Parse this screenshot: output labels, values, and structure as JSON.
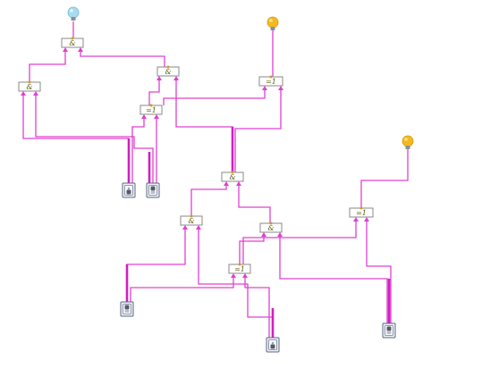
{
  "colors": {
    "wire": "#e040d0",
    "bulb_on": "#f5b820",
    "bulb_off": "#a8dcef",
    "gate_border": "#888888"
  },
  "gates": [
    {
      "id": "and1",
      "label": "&"
    },
    {
      "id": "and2",
      "label": "&"
    },
    {
      "id": "and3",
      "label": "&"
    },
    {
      "id": "xor1",
      "label": "=1"
    },
    {
      "id": "xor2",
      "label": "=1"
    },
    {
      "id": "and4",
      "label": "&"
    },
    {
      "id": "and5",
      "label": "&"
    },
    {
      "id": "and6",
      "label": "&"
    },
    {
      "id": "xor3",
      "label": "=1"
    },
    {
      "id": "xor4",
      "label": "=1"
    }
  ],
  "switches": [
    {
      "id": "s1",
      "state": "off"
    },
    {
      "id": "s2",
      "state": "on"
    },
    {
      "id": "s3",
      "state": "on"
    },
    {
      "id": "s4",
      "state": "off"
    },
    {
      "id": "s5",
      "state": "on"
    }
  ],
  "lamps": [
    {
      "id": "lamp1",
      "state": "off",
      "icon": "bulb-off-icon"
    },
    {
      "id": "lamp2",
      "state": "on",
      "icon": "bulb-on-icon"
    },
    {
      "id": "lamp3",
      "state": "on",
      "icon": "bulb-on-icon"
    }
  ]
}
